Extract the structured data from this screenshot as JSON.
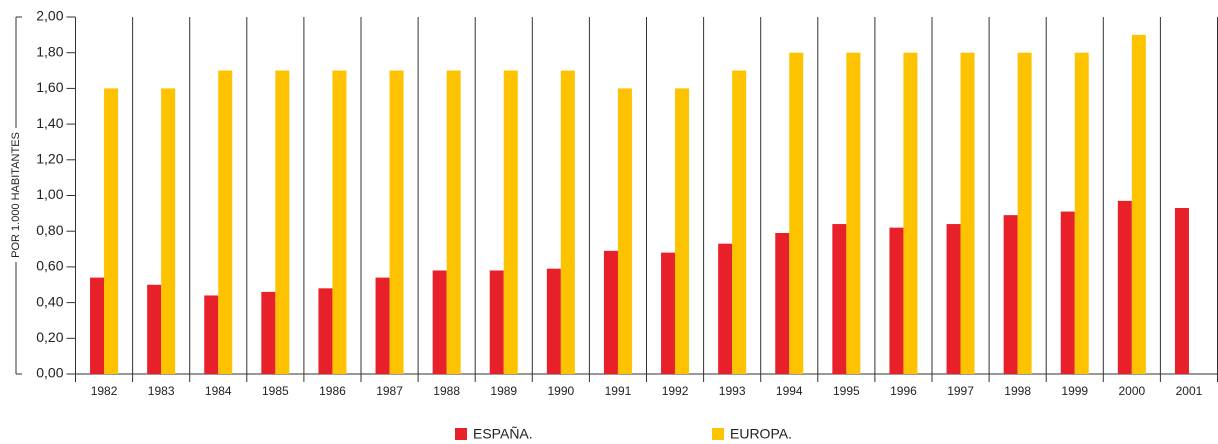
{
  "chart_data": {
    "type": "bar",
    "y_label": "POR 1.000 HABITANTES",
    "categories": [
      "1982",
      "1983",
      "1984",
      "1985",
      "1986",
      "1987",
      "1988",
      "1989",
      "1990",
      "1991",
      "1992",
      "1993",
      "1994",
      "1995",
      "1996",
      "1997",
      "1998",
      "1999",
      "2000",
      "2001"
    ],
    "series": [
      {
        "name": "ESPAÑA.",
        "color": "#e8202a",
        "values": [
          0.54,
          0.5,
          0.44,
          0.46,
          0.48,
          0.54,
          0.58,
          0.58,
          0.59,
          0.69,
          0.68,
          0.73,
          0.79,
          0.84,
          0.82,
          0.84,
          0.89,
          0.91,
          0.97,
          0.93
        ]
      },
      {
        "name": "EUROPA.",
        "color": "#fdc300",
        "values": [
          1.6,
          1.6,
          1.7,
          1.7,
          1.7,
          1.7,
          1.7,
          1.7,
          1.7,
          1.6,
          1.6,
          1.7,
          1.8,
          1.8,
          1.8,
          1.8,
          1.8,
          1.8,
          1.9,
          null
        ]
      }
    ],
    "ylim": [
      0,
      2
    ],
    "yticks": [
      {
        "value": 0,
        "label": "0,00"
      },
      {
        "value": 0.2,
        "label": "0,20"
      },
      {
        "value": 0.4,
        "label": "0,40"
      },
      {
        "value": 0.6,
        "label": "0,60"
      },
      {
        "value": 0.8,
        "label": "0,80"
      },
      {
        "value": 1,
        "label": "1,00"
      },
      {
        "value": 1.2,
        "label": "1,20"
      },
      {
        "value": 1.4,
        "label": "1,40"
      },
      {
        "value": 1.6,
        "label": "1,60"
      },
      {
        "value": 1.8,
        "label": "1,80"
      },
      {
        "value": 2,
        "label": "2,00"
      }
    ]
  }
}
